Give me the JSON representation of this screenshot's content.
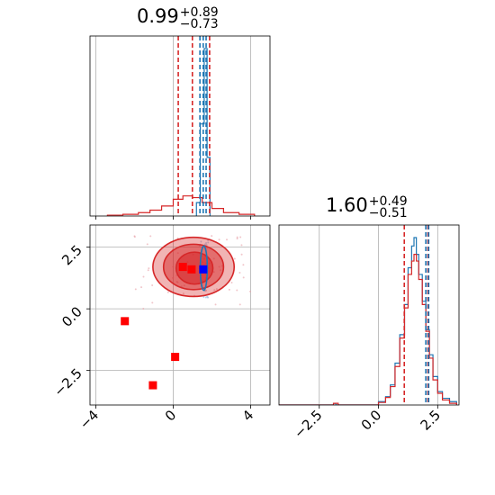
{
  "chart_data": [
    {
      "panel": "top-left",
      "type": "histogram",
      "title": {
        "value": "0.99",
        "plus": "+0.89",
        "minus": "−0.73"
      },
      "xlim": [
        -4.3,
        5.0
      ],
      "grid": true,
      "series": [
        {
          "name": "",
          "color": "#1f77b4",
          "bins": [
            {
              "x": [
                1.2,
                1.4
              ],
              "h": 0.08
            },
            {
              "x": [
                1.4,
                1.6
              ],
              "h": 0.55
            },
            {
              "x": [
                1.6,
                1.75
              ],
              "h": 1.0
            },
            {
              "x": [
                1.75,
                1.9
              ],
              "h": 0.35
            }
          ]
        },
        {
          "name": "",
          "color": "#d62728",
          "bins": [
            {
              "x": [
                -3.4,
                -2.6
              ],
              "h": 0.005
            },
            {
              "x": [
                -2.6,
                -1.8
              ],
              "h": 0.01
            },
            {
              "x": [
                -1.8,
                -1.2
              ],
              "h": 0.02
            },
            {
              "x": [
                -1.2,
                -0.6
              ],
              "h": 0.035
            },
            {
              "x": [
                -0.6,
                0.0
              ],
              "h": 0.06
            },
            {
              "x": [
                0.0,
                0.5
              ],
              "h": 0.1
            },
            {
              "x": [
                0.5,
                1.0
              ],
              "h": 0.12
            },
            {
              "x": [
                1.0,
                1.5
              ],
              "h": 0.11
            },
            {
              "x": [
                1.5,
                2.0
              ],
              "h": 0.08
            },
            {
              "x": [
                2.0,
                2.6
              ],
              "h": 0.045
            },
            {
              "x": [
                2.6,
                3.4
              ],
              "h": 0.02
            },
            {
              "x": [
                3.4,
                4.2
              ],
              "h": 0.01
            }
          ]
        }
      ],
      "quantile_lines": [
        {
          "x": 0.26,
          "color": "#d62728"
        },
        {
          "x": 0.99,
          "color": "#d62728"
        },
        {
          "x": 1.88,
          "color": "#d62728"
        },
        {
          "x": 1.38,
          "color": "#1f77b4"
        },
        {
          "x": 1.55,
          "color": "#1f77b4"
        },
        {
          "x": 1.7,
          "color": "#1f77b4"
        }
      ]
    },
    {
      "panel": "bottom-left",
      "type": "contour-scatter",
      "xlim": [
        -4.3,
        5.0
      ],
      "ylim": [
        -3.9,
        3.4
      ],
      "xticks": [
        -4,
        0,
        4
      ],
      "yticks": [
        2.5,
        0.0,
        -2.5
      ],
      "grid": true,
      "contours": [
        {
          "color": "#d62728",
          "cx": 1.05,
          "cy": 1.7,
          "rx": 2.1,
          "ry": 1.2,
          "opacity": 0.35
        },
        {
          "color": "#d62728",
          "cx": 1.05,
          "cy": 1.7,
          "rx": 1.55,
          "ry": 0.92,
          "opacity": 0.5
        },
        {
          "color": "#d62728",
          "cx": 1.1,
          "cy": 1.65,
          "rx": 0.95,
          "ry": 0.65,
          "opacity": 0.6
        },
        {
          "color": "#1f77b4",
          "cx": 1.58,
          "cy": 1.65,
          "rx": 0.18,
          "ry": 0.9,
          "opacity": 0.0
        }
      ],
      "markers": [
        {
          "x": 0.5,
          "y": 1.7,
          "color": "#ff0000"
        },
        {
          "x": 0.95,
          "y": 1.6,
          "color": "#ff0000"
        },
        {
          "x": 1.55,
          "y": 1.6,
          "color": "#0000ff"
        },
        {
          "x": -2.5,
          "y": -0.5,
          "color": "#ff0000"
        },
        {
          "x": 0.1,
          "y": -1.95,
          "color": "#ff0000"
        },
        {
          "x": -1.05,
          "y": -3.1,
          "color": "#ff0000"
        }
      ]
    },
    {
      "panel": "bottom-right",
      "type": "histogram",
      "title": {
        "value": "1.60",
        "plus": "+0.49",
        "minus": "−0.51"
      },
      "xlim": [
        -4.2,
        3.4
      ],
      "xticks": [
        -2.5,
        0.0,
        2.5
      ],
      "grid": true,
      "series": [
        {
          "name": "",
          "color": "#1f77b4",
          "bins": [
            {
              "x": [
                -4.2,
                -1.9
              ],
              "h": 0.0
            },
            {
              "x": [
                -1.9,
                -1.8
              ],
              "h": 0.01
            },
            {
              "x": [
                -1.8,
                0.0
              ],
              "h": 0.0
            },
            {
              "x": [
                0.0,
                0.3
              ],
              "h": 0.02
            },
            {
              "x": [
                0.3,
                0.5
              ],
              "h": 0.05
            },
            {
              "x": [
                0.5,
                0.7
              ],
              "h": 0.12
            },
            {
              "x": [
                0.7,
                0.9
              ],
              "h": 0.25
            },
            {
              "x": [
                0.9,
                1.1
              ],
              "h": 0.42
            },
            {
              "x": [
                1.1,
                1.25
              ],
              "h": 0.6
            },
            {
              "x": [
                1.25,
                1.4
              ],
              "h": 0.82
            },
            {
              "x": [
                1.4,
                1.5
              ],
              "h": 0.95
            },
            {
              "x": [
                1.5,
                1.6
              ],
              "h": 1.0
            },
            {
              "x": [
                1.6,
                1.7
              ],
              "h": 0.9
            },
            {
              "x": [
                1.7,
                1.85
              ],
              "h": 0.78
            },
            {
              "x": [
                1.85,
                2.0
              ],
              "h": 0.62
            },
            {
              "x": [
                2.0,
                2.15
              ],
              "h": 0.45
            },
            {
              "x": [
                2.15,
                2.3
              ],
              "h": 0.3
            },
            {
              "x": [
                2.3,
                2.5
              ],
              "h": 0.17
            },
            {
              "x": [
                2.5,
                2.7
              ],
              "h": 0.08
            },
            {
              "x": [
                2.7,
                3.0
              ],
              "h": 0.04
            },
            {
              "x": [
                3.0,
                3.3
              ],
              "h": 0.02
            }
          ]
        },
        {
          "name": "",
          "color": "#d62728",
          "bins": [
            {
              "x": [
                -4.2,
                -1.9
              ],
              "h": 0.0
            },
            {
              "x": [
                -1.9,
                -1.7
              ],
              "h": 0.01
            },
            {
              "x": [
                -1.7,
                0.0
              ],
              "h": 0.0
            },
            {
              "x": [
                0.0,
                0.3
              ],
              "h": 0.015
            },
            {
              "x": [
                0.3,
                0.5
              ],
              "h": 0.045
            },
            {
              "x": [
                0.5,
                0.7
              ],
              "h": 0.11
            },
            {
              "x": [
                0.7,
                0.9
              ],
              "h": 0.23
            },
            {
              "x": [
                0.9,
                1.1
              ],
              "h": 0.4
            },
            {
              "x": [
                1.1,
                1.25
              ],
              "h": 0.58
            },
            {
              "x": [
                1.25,
                1.4
              ],
              "h": 0.78
            },
            {
              "x": [
                1.4,
                1.5
              ],
              "h": 0.86
            },
            {
              "x": [
                1.5,
                1.6
              ],
              "h": 0.9
            },
            {
              "x": [
                1.6,
                1.7
              ],
              "h": 0.86
            },
            {
              "x": [
                1.7,
                1.85
              ],
              "h": 0.75
            },
            {
              "x": [
                1.85,
                2.0
              ],
              "h": 0.6
            },
            {
              "x": [
                2.0,
                2.15
              ],
              "h": 0.44
            },
            {
              "x": [
                2.15,
                2.3
              ],
              "h": 0.28
            },
            {
              "x": [
                2.3,
                2.5
              ],
              "h": 0.15
            },
            {
              "x": [
                2.5,
                2.7
              ],
              "h": 0.07
            },
            {
              "x": [
                2.7,
                3.0
              ],
              "h": 0.03
            },
            {
              "x": [
                3.0,
                3.3
              ],
              "h": 0.01
            }
          ]
        }
      ],
      "quantile_lines": [
        {
          "x": 1.09,
          "color": "#d62728"
        },
        {
          "x": 2.09,
          "color": "#d62728"
        },
        {
          "x": 2.0,
          "color": "#1f77b4"
        },
        {
          "x": 2.12,
          "color": "#1f77b4"
        }
      ]
    }
  ]
}
